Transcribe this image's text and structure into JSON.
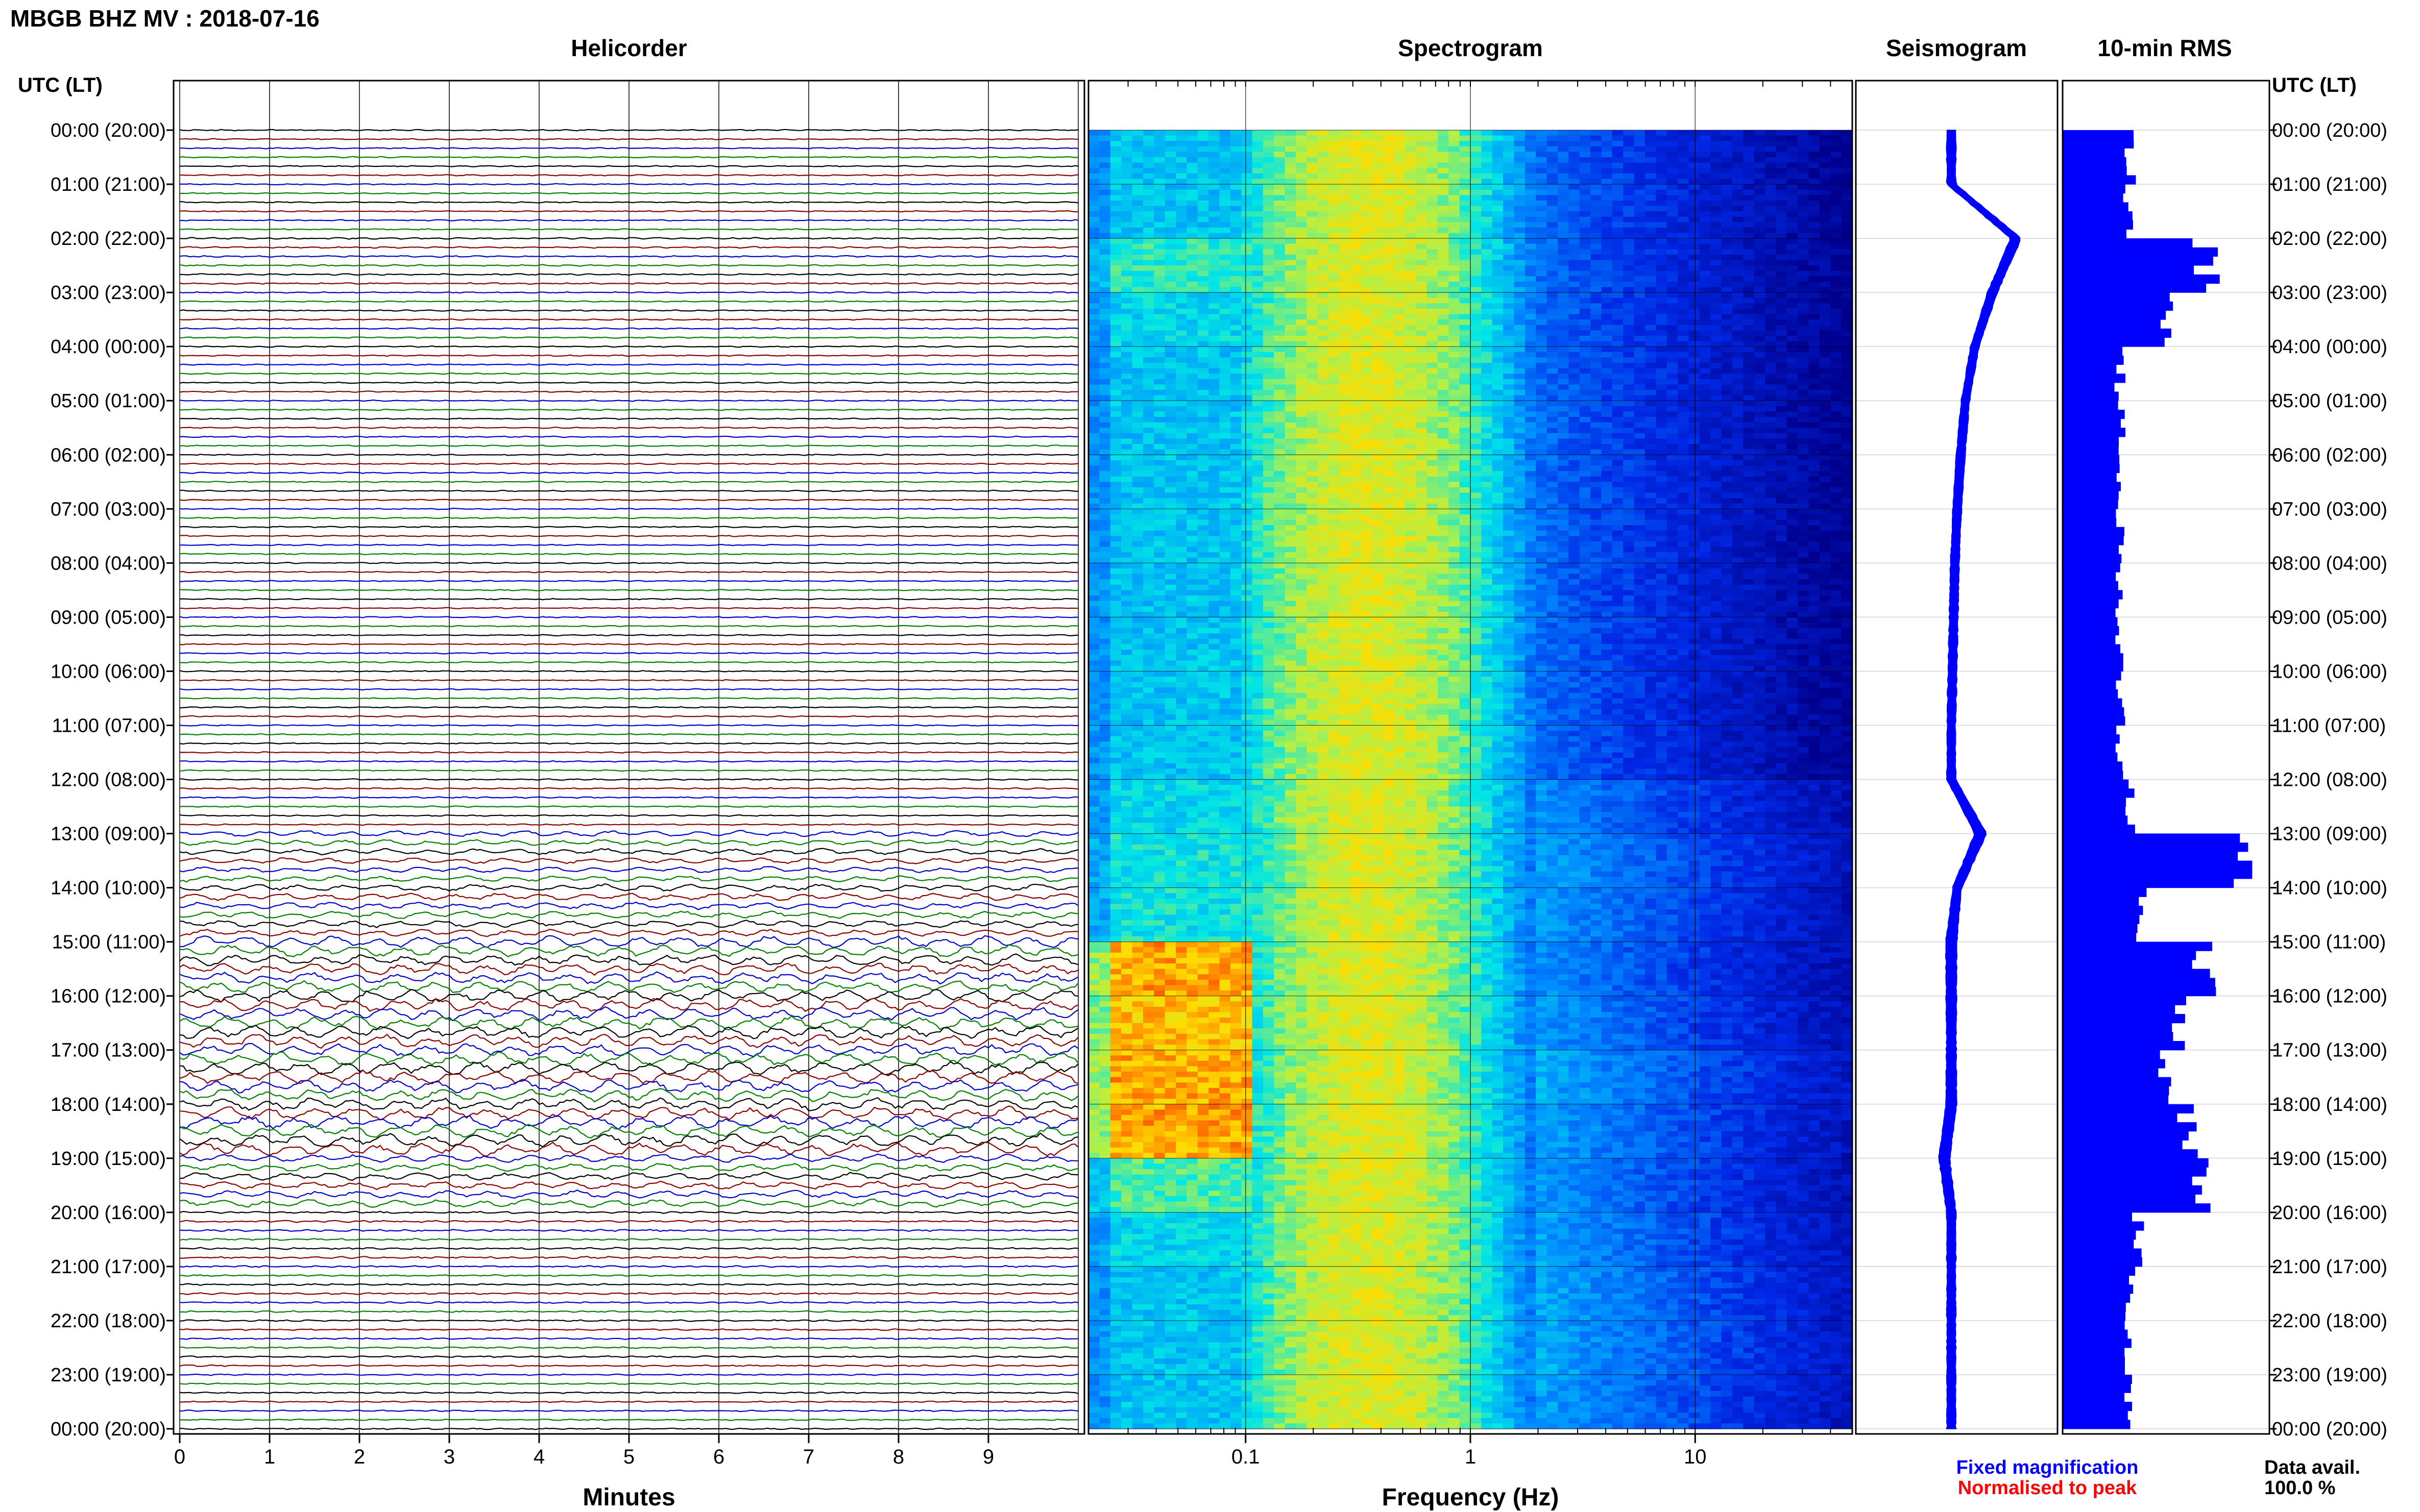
{
  "header": {
    "station_title": "MBGB BHZ MV : 2018-07-16",
    "panel_titles": [
      "Helicorder",
      "Spectrogram",
      "Seismogram",
      "10-min RMS"
    ],
    "utc_lt_label": "UTC (LT)"
  },
  "footer": {
    "minutes_label": "Minutes",
    "frequency_label": "Frequency (Hz)",
    "legend_fixed": "Fixed magnification",
    "legend_normalised": "Normalised to peak",
    "data_avail_label": "Data avail.",
    "data_avail_value": "100.0 %"
  },
  "colors": {
    "trace_cycle": [
      "#000000",
      "#8b0000",
      "#0000cd",
      "#008000"
    ],
    "legend_fixed": "#0000ff",
    "legend_normalised": "#ff0000",
    "seismogram": "#0000ff",
    "rms": "#0000ff"
  },
  "chart_data": [
    {
      "type": "line",
      "title": "Helicorder",
      "xlabel": "Minutes",
      "x_ticks": [
        0,
        1,
        2,
        3,
        4,
        5,
        6,
        7,
        8,
        9
      ],
      "xlim": [
        0,
        10
      ],
      "ylabel": "UTC (LT)",
      "time_tick_labels": [
        "00:00 (20:00)",
        "01:00 (21:00)",
        "02:00 (22:00)",
        "03:00 (23:00)",
        "04:00 (00:00)",
        "05:00 (01:00)",
        "06:00 (02:00)",
        "07:00 (03:00)",
        "08:00 (04:00)",
        "09:00 (05:00)",
        "10:00 (06:00)",
        "11:00 (07:00)",
        "12:00 (08:00)",
        "13:00 (09:00)",
        "14:00 (10:00)",
        "15:00 (11:00)",
        "16:00 (12:00)",
        "17:00 (13:00)",
        "18:00 (14:00)",
        "19:00 (15:00)",
        "20:00 (16:00)",
        "21:00 (17:00)",
        "22:00 (18:00)",
        "23:00 (19:00)",
        "00:00 (20:00)"
      ],
      "lines_per_hour": 6,
      "minutes_per_line": 10,
      "hourly_amplitude": [
        0.22,
        0.22,
        0.28,
        0.22,
        0.22,
        0.22,
        0.22,
        0.22,
        0.22,
        0.22,
        0.22,
        0.22,
        0.25,
        0.45,
        0.55,
        0.9,
        1.0,
        1.0,
        1.0,
        0.6,
        0.35,
        0.3,
        0.28,
        0.25
      ]
    },
    {
      "type": "heatmap",
      "title": "Spectrogram",
      "xlabel": "Frequency (Hz)",
      "x_scale": "log",
      "x_ticks": [
        0.1,
        1,
        10
      ],
      "xlim": [
        0.02,
        50
      ],
      "hourly_low_freq_energy": [
        0.35,
        0.35,
        0.5,
        0.4,
        0.35,
        0.35,
        0.35,
        0.35,
        0.35,
        0.35,
        0.35,
        0.35,
        0.4,
        0.45,
        0.45,
        0.95,
        0.9,
        0.95,
        0.95,
        0.55,
        0.4,
        0.35,
        0.35,
        0.35
      ],
      "hourly_high_freq_energy": [
        0.1,
        0.1,
        0.1,
        0.1,
        0.1,
        0.1,
        0.1,
        0.1,
        0.1,
        0.1,
        0.1,
        0.1,
        0.3,
        0.4,
        0.35,
        0.3,
        0.35,
        0.45,
        0.4,
        0.35,
        0.4,
        0.45,
        0.45,
        0.4
      ]
    },
    {
      "type": "line",
      "title": "Seismogram",
      "hourly_offset": [
        0,
        0,
        0.55,
        0.35,
        0.2,
        0.12,
        0.08,
        0.05,
        0.03,
        0.02,
        0.01,
        0,
        0,
        0.25,
        0.05,
        0,
        0,
        0,
        0,
        -0.06,
        0,
        0,
        0,
        0
      ]
    },
    {
      "type": "bar",
      "title": "10-min RMS",
      "hourly_values": [
        0.35,
        0.35,
        0.75,
        0.55,
        0.3,
        0.3,
        0.3,
        0.3,
        0.3,
        0.3,
        0.3,
        0.3,
        0.35,
        0.95,
        0.4,
        0.75,
        0.6,
        0.55,
        0.65,
        0.75,
        0.4,
        0.35,
        0.35,
        0.35
      ]
    }
  ]
}
